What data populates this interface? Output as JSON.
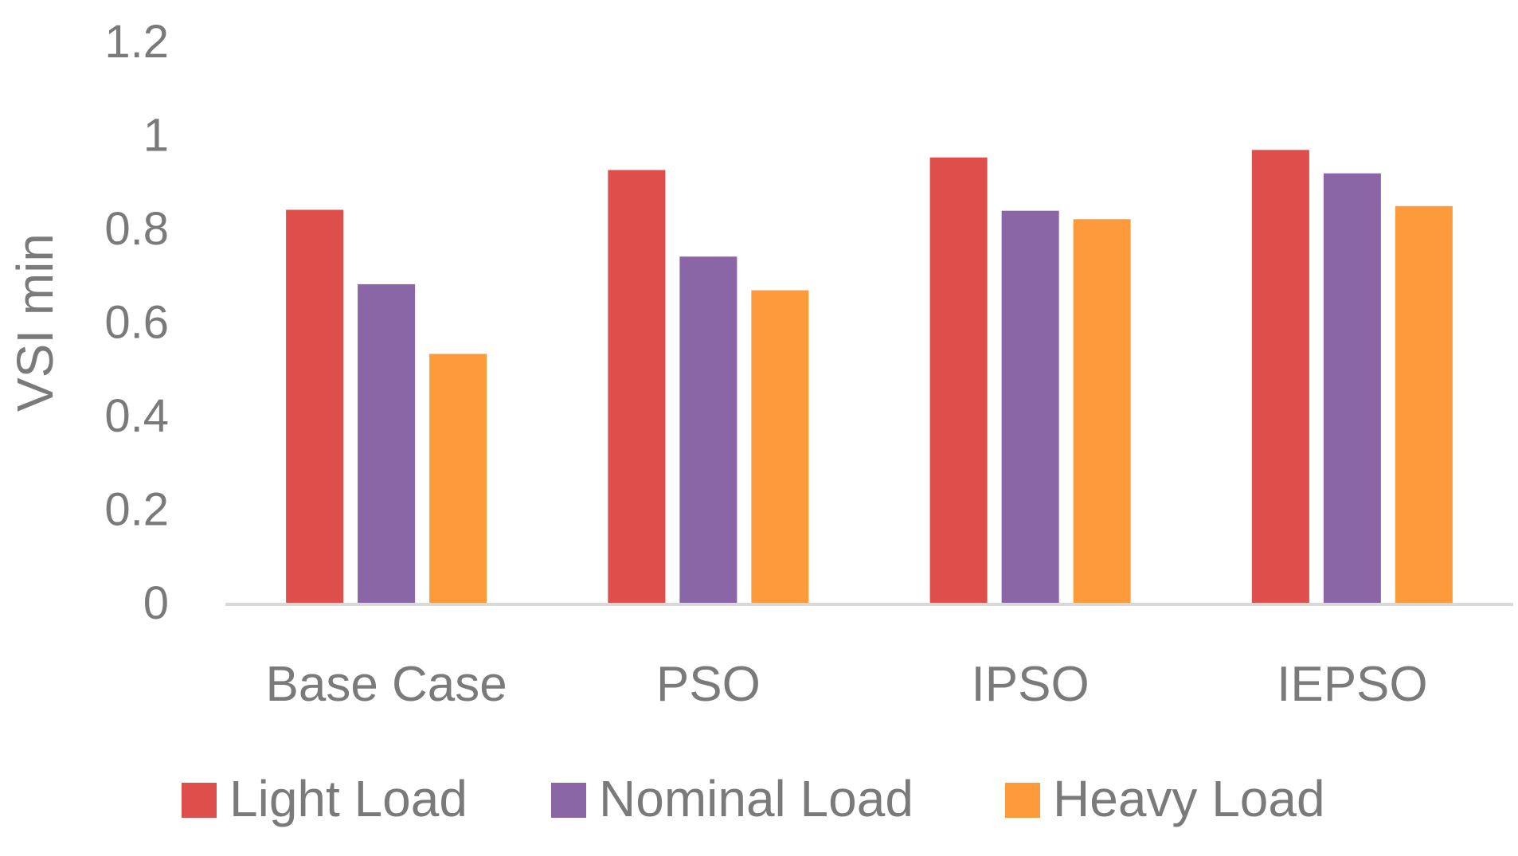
{
  "chart_data": {
    "type": "bar",
    "title": "",
    "xlabel": "",
    "ylabel": "VSI min",
    "ylim": [
      0,
      1.2
    ],
    "yticks": [
      "0",
      "0.2",
      "0.4",
      "0.6",
      "0.8",
      "1",
      "1.2"
    ],
    "grid": false,
    "legend_position": "bottom",
    "categories": [
      "Base Case",
      "PSO",
      "IPSO",
      "IEPSO"
    ],
    "series": [
      {
        "name": "Light Load",
        "color": "#de4f4c",
        "values": [
          0.84,
          0.925,
          0.952,
          0.968
        ]
      },
      {
        "name": "Nominal Load",
        "color": "#8b66a6",
        "values": [
          0.681,
          0.74,
          0.838,
          0.918
        ]
      },
      {
        "name": "Heavy Load",
        "color": "#fd9a3c",
        "values": [
          0.532,
          0.668,
          0.82,
          0.848
        ]
      }
    ]
  }
}
